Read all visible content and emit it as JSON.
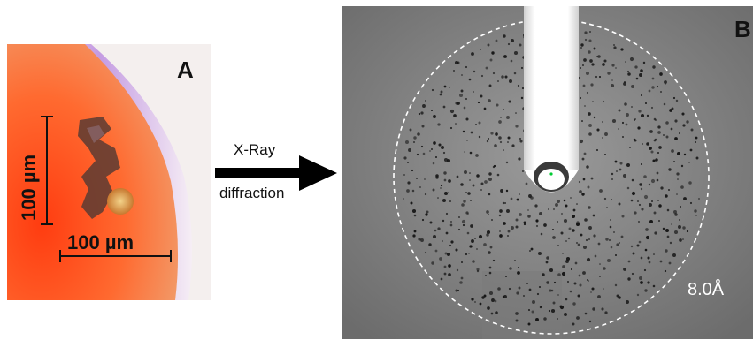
{
  "panel_a": {
    "label": "A",
    "scale_bar_horizontal": "100 µm",
    "scale_bar_vertical": "100 µm",
    "colors": {
      "background": "#ff5a1e",
      "dish_edge": "#c080d8",
      "crystal": "#6a4a3a"
    }
  },
  "arrow": {
    "label_top": "X-Ray",
    "label_bottom": "diffraction",
    "icon": "right-arrow-icon"
  },
  "panel_b": {
    "label": "B",
    "resolution_label": "8.0Å",
    "colors": {
      "background": "#8a8a8a",
      "beamstop": "#ffffff",
      "spots": "#1a1a1a",
      "ring": "#ffffff"
    }
  }
}
